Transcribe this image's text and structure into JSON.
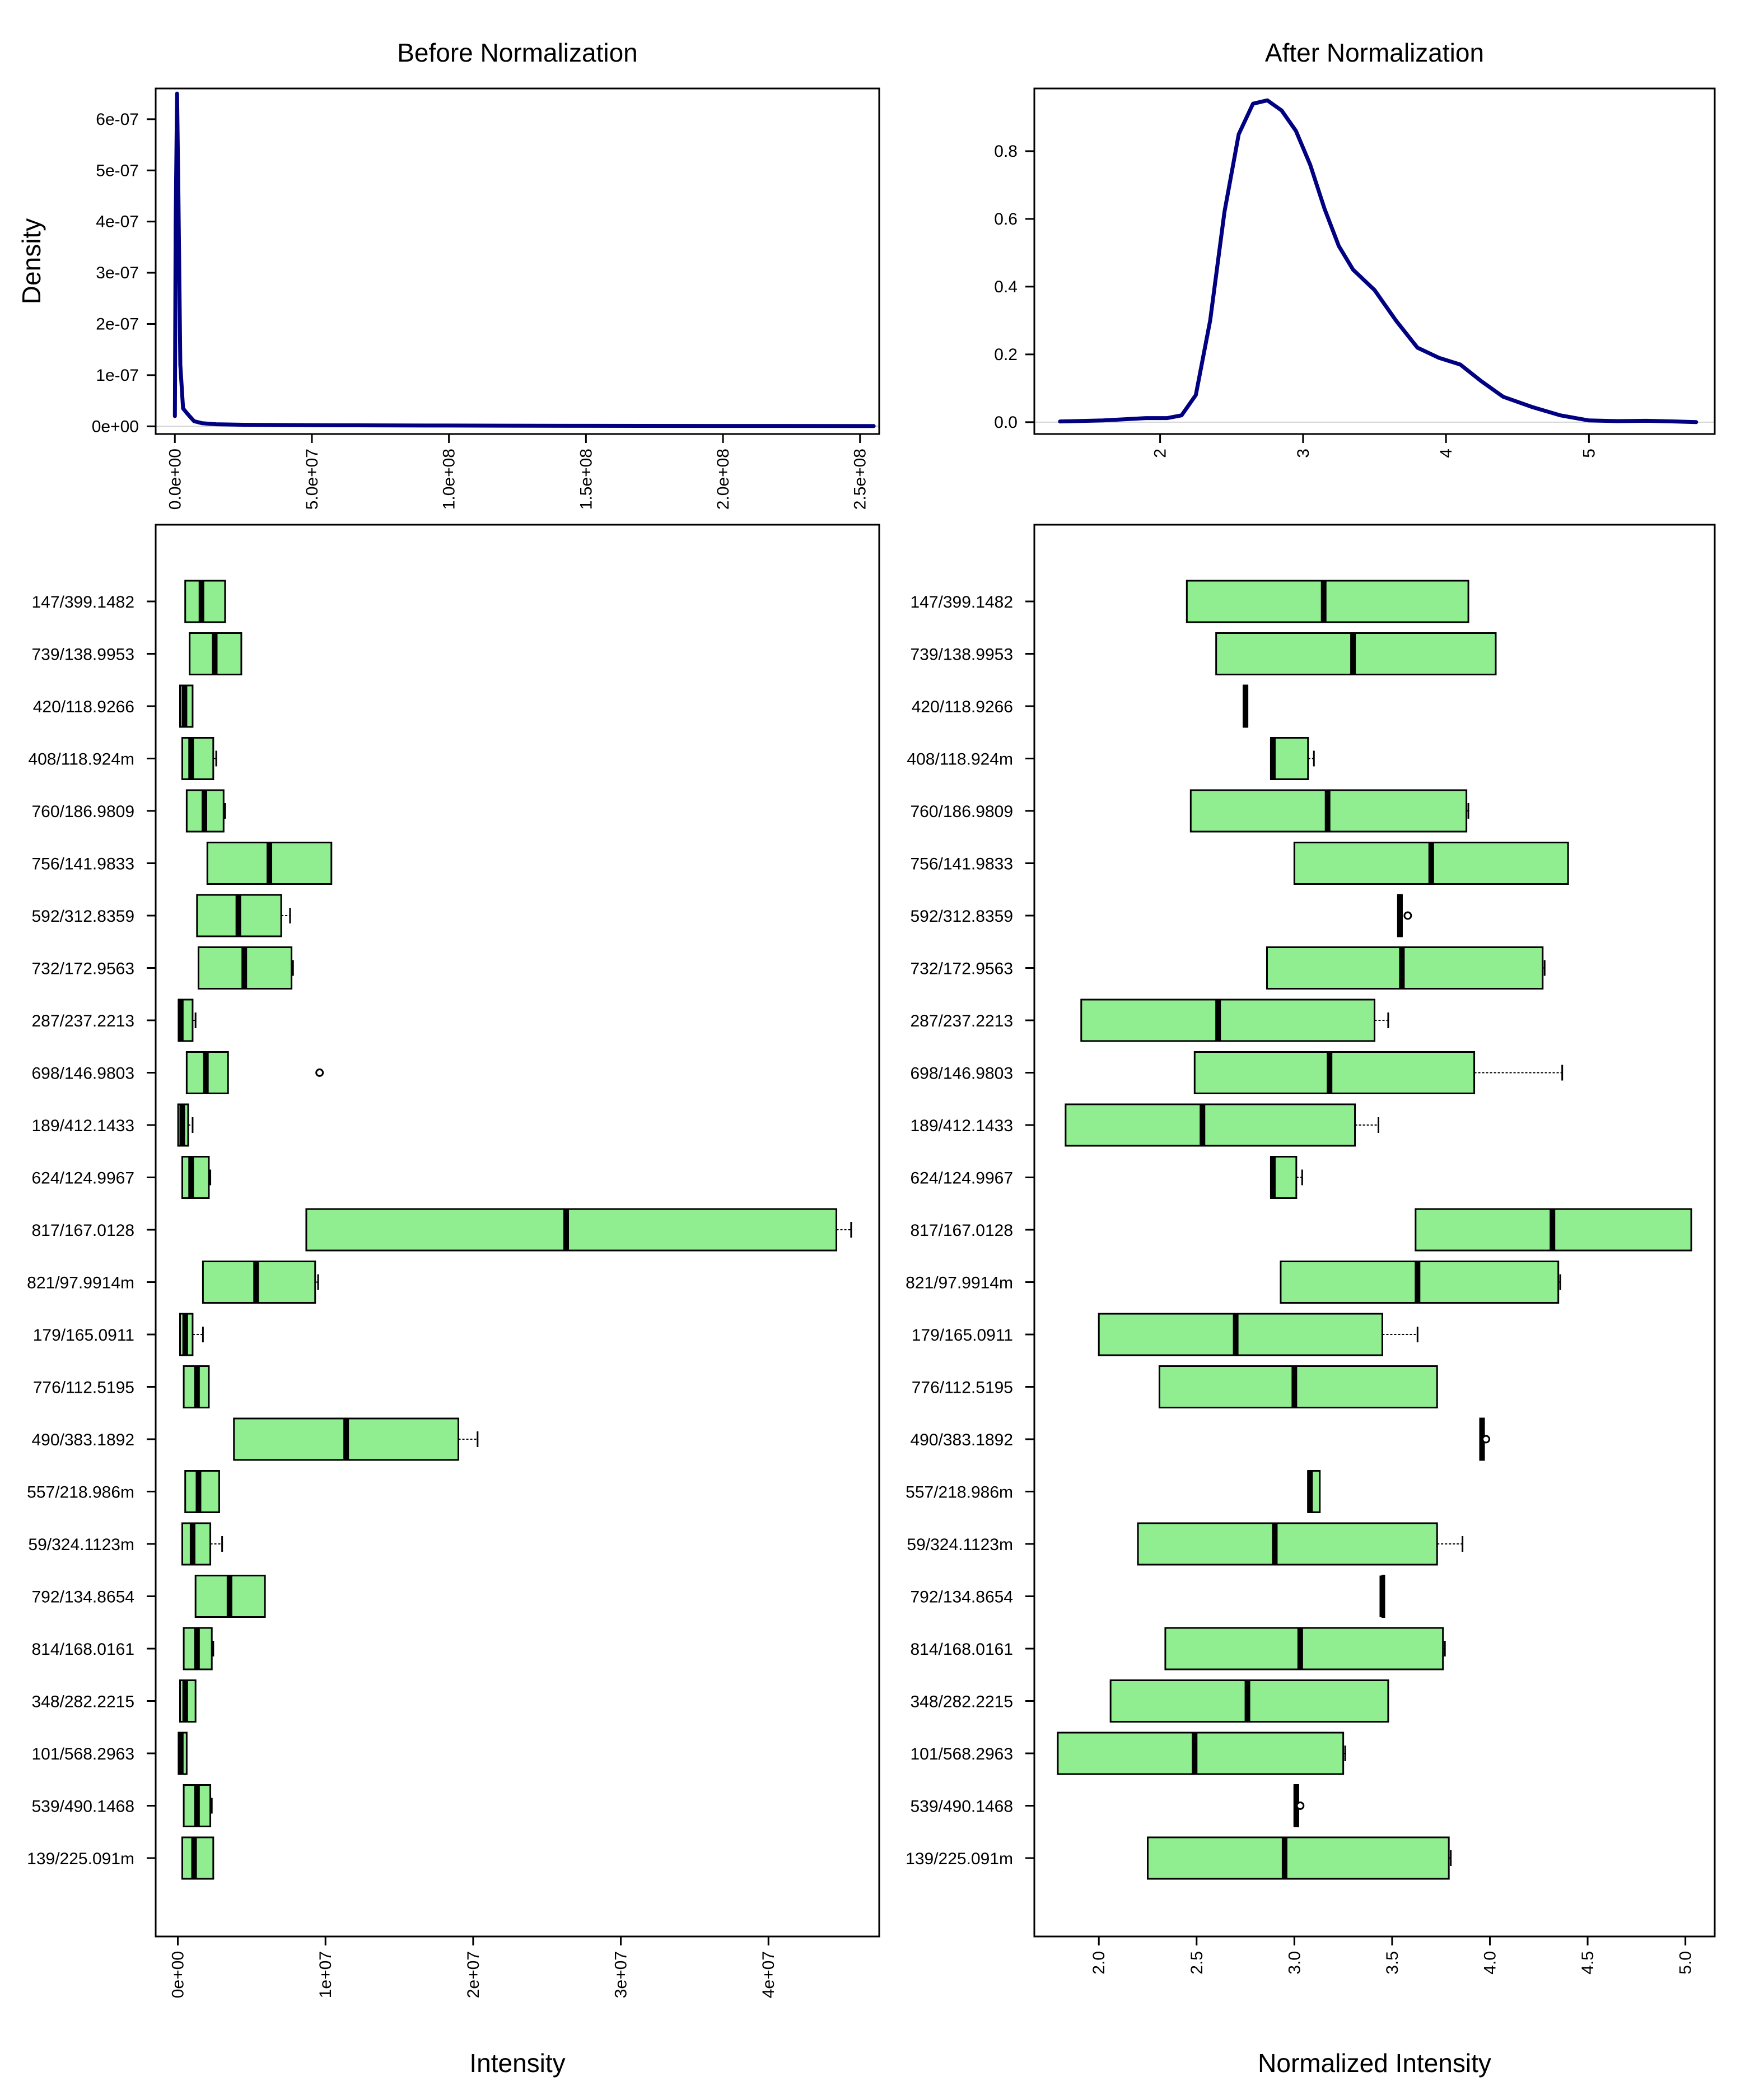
{
  "chart_data": [
    {
      "type": "line",
      "title": "Before Normalization",
      "ylabel": "Density",
      "xlabel": "",
      "xlim": [
        -7000000.0,
        257000000.0
      ],
      "ylim": [
        -1.5e-08,
        6.6e-07
      ],
      "xticks": [
        0,
        50000000.0,
        100000000.0,
        150000000.0,
        200000000.0,
        250000000.0
      ],
      "xtick_labels": [
        "0.0e+00",
        "5.0e+07",
        "1.0e+08",
        "1.5e+08",
        "2.0e+08",
        "2.5e+08"
      ],
      "yticks": [
        0,
        1e-07,
        2e-07,
        3e-07,
        4e-07,
        5e-07,
        6e-07
      ],
      "ytick_labels": [
        "0e+00",
        "1e-07",
        "2e-07",
        "3e-07",
        "4e-07",
        "5e-07",
        "6e-07"
      ],
      "color": "#000080",
      "series": [
        {
          "x": [
            0,
            300000.0,
            800000.0,
            1300000.0,
            2000000.0,
            3000000.0,
            4500000.0,
            7000000.0,
            10000000.0,
            15000000.0,
            25000000.0,
            40000000.0,
            60000000.0,
            100000000.0,
            150000000.0,
            200000000.0,
            255000000.0
          ],
          "y": [
            2e-08,
            4e-07,
            6.5e-07,
            4.5e-07,
            1.2e-07,
            3.5e-08,
            2.5e-08,
            1e-08,
            6e-09,
            4e-09,
            3e-09,
            2.5e-09,
            2e-09,
            1.5e-09,
            1e-09,
            8e-10,
            5e-10
          ]
        }
      ]
    },
    {
      "type": "line",
      "title": "After Normalization",
      "ylabel": "",
      "xlabel": "",
      "xlim": [
        1.12,
        5.88
      ],
      "ylim": [
        -0.035,
        0.985
      ],
      "xticks": [
        2,
        3,
        4,
        5
      ],
      "xtick_labels": [
        "2",
        "3",
        "4",
        "5"
      ],
      "yticks": [
        0,
        0.2,
        0.4,
        0.6,
        0.8
      ],
      "ytick_labels": [
        "0.0",
        "0.2",
        "0.4",
        "0.6",
        "0.8"
      ],
      "color": "#000080",
      "series": [
        {
          "x": [
            1.3,
            1.6,
            1.9,
            2.05,
            2.15,
            2.25,
            2.35,
            2.45,
            2.55,
            2.65,
            2.75,
            2.85,
            2.95,
            3.05,
            3.15,
            3.25,
            3.35,
            3.5,
            3.65,
            3.8,
            3.95,
            4.1,
            4.25,
            4.4,
            4.6,
            4.8,
            5.0,
            5.2,
            5.4,
            5.6,
            5.75
          ],
          "y": [
            0.002,
            0.005,
            0.012,
            0.012,
            0.02,
            0.08,
            0.3,
            0.62,
            0.85,
            0.94,
            0.95,
            0.92,
            0.86,
            0.76,
            0.63,
            0.52,
            0.45,
            0.39,
            0.3,
            0.22,
            0.19,
            0.17,
            0.12,
            0.075,
            0.045,
            0.02,
            0.005,
            0.003,
            0.004,
            0.002,
            0.0
          ]
        }
      ]
    },
    {
      "type": "box",
      "title": "",
      "xlabel": "Intensity",
      "orientation": "horizontal",
      "xlim": [
        -1500000.0,
        47500000.0
      ],
      "xticks": [
        0,
        10000000.0,
        20000000.0,
        30000000.0,
        40000000.0
      ],
      "xtick_labels": [
        "0e+00",
        "1e+07",
        "2e+07",
        "3e+07",
        "4e+07"
      ],
      "fill": "#90ee90",
      "categories": [
        "147/399.1482",
        "739/138.9953",
        "420/118.9266",
        "408/118.924m",
        "760/186.9809",
        "756/141.9833",
        "592/312.8359",
        "732/172.9563",
        "287/237.2213",
        "698/146.9803",
        "189/412.1433",
        "624/124.9967",
        "817/167.0128",
        "821/97.9914m",
        "179/165.0911",
        "776/112.5195",
        "490/383.1892",
        "557/218.986m",
        "59/324.1123m",
        "792/134.8654",
        "814/168.0161",
        "348/282.2215",
        "101/568.2963",
        "539/490.1468",
        "139/225.091m"
      ],
      "boxes": [
        {
          "whislo": 500000,
          "q1": 500000,
          "med": 1600000,
          "q3": 3200000,
          "whishi": 3200000,
          "fliers": []
        },
        {
          "whislo": 800000,
          "q1": 800000,
          "med": 2500000,
          "q3": 4300000,
          "whishi": 4300000,
          "fliers": []
        },
        {
          "whislo": 150000,
          "q1": 150000,
          "med": 450000,
          "q3": 1000000,
          "whishi": 1000000,
          "fliers": []
        },
        {
          "whislo": 300000,
          "q1": 300000,
          "med": 900000,
          "q3": 2400000,
          "whishi": 2600000,
          "fliers": []
        },
        {
          "whislo": 600000,
          "q1": 600000,
          "med": 1800000,
          "q3": 3100000,
          "whishi": 3200000,
          "fliers": []
        },
        {
          "whislo": 2000000,
          "q1": 2000000,
          "med": 6200000,
          "q3": 10400000,
          "whishi": 10400000,
          "fliers": []
        },
        {
          "whislo": 1300000,
          "q1": 1300000,
          "med": 4100000,
          "q3": 7000000,
          "whishi": 7600000,
          "fliers": []
        },
        {
          "whislo": 1400000,
          "q1": 1400000,
          "med": 4500000,
          "q3": 7700000,
          "whishi": 7800000,
          "fliers": []
        },
        {
          "whislo": 50000,
          "q1": 50000,
          "med": 200000,
          "q3": 1000000,
          "whishi": 1200000,
          "fliers": []
        },
        {
          "whislo": 600000,
          "q1": 600000,
          "med": 1900000,
          "q3": 3400000,
          "whishi": 3400000,
          "fliers": [
            9600000
          ]
        },
        {
          "whislo": 20000,
          "q1": 20000,
          "med": 300000,
          "q3": 700000,
          "whishi": 1000000,
          "fliers": []
        },
        {
          "whislo": 300000,
          "q1": 300000,
          "med": 900000,
          "q3": 2100000,
          "whishi": 2200000,
          "fliers": []
        },
        {
          "whislo": 8700000,
          "q1": 8700000,
          "med": 26300000,
          "q3": 44600000,
          "whishi": 45600000,
          "fliers": []
        },
        {
          "whislo": 1700000,
          "q1": 1700000,
          "med": 5300000,
          "q3": 9300000,
          "whishi": 9500000,
          "fliers": []
        },
        {
          "whislo": 150000,
          "q1": 150000,
          "med": 500000,
          "q3": 1000000,
          "whishi": 1700000,
          "fliers": []
        },
        {
          "whislo": 400000,
          "q1": 400000,
          "med": 1300000,
          "q3": 2100000,
          "whishi": 2100000,
          "fliers": []
        },
        {
          "whislo": 3800000,
          "q1": 3800000,
          "med": 11400000,
          "q3": 19000000,
          "whishi": 20300000,
          "fliers": []
        },
        {
          "whislo": 500000,
          "q1": 500000,
          "med": 1400000,
          "q3": 2800000,
          "whishi": 2800000,
          "fliers": []
        },
        {
          "whislo": 300000,
          "q1": 300000,
          "med": 1000000,
          "q3": 2200000,
          "whishi": 3000000,
          "fliers": []
        },
        {
          "whislo": 1200000,
          "q1": 1200000,
          "med": 3500000,
          "q3": 5900000,
          "whishi": 5900000,
          "fliers": []
        },
        {
          "whislo": 400000,
          "q1": 400000,
          "med": 1300000,
          "q3": 2300000,
          "whishi": 2400000,
          "fliers": []
        },
        {
          "whislo": 150000,
          "q1": 150000,
          "med": 500000,
          "q3": 1200000,
          "whishi": 1200000,
          "fliers": []
        },
        {
          "whislo": 50000,
          "q1": 50000,
          "med": 200000,
          "q3": 600000,
          "whishi": 600000,
          "fliers": []
        },
        {
          "whislo": 400000,
          "q1": 400000,
          "med": 1300000,
          "q3": 2200000,
          "whishi": 2300000,
          "fliers": []
        },
        {
          "whislo": 300000,
          "q1": 300000,
          "med": 1100000,
          "q3": 2400000,
          "whishi": 2400000,
          "fliers": []
        }
      ]
    },
    {
      "type": "box",
      "title": "",
      "xlabel": "Normalized Intensity",
      "orientation": "horizontal",
      "xlim": [
        1.67,
        5.15
      ],
      "xticks": [
        2.0,
        2.5,
        3.0,
        3.5,
        4.0,
        4.5,
        5.0
      ],
      "xtick_labels": [
        "2.0",
        "2.5",
        "3.0",
        "3.5",
        "4.0",
        "4.5",
        "5.0"
      ],
      "fill": "#90ee90",
      "categories": [
        "147/399.1482",
        "739/138.9953",
        "420/118.9266",
        "408/118.924m",
        "760/186.9809",
        "756/141.9833",
        "592/312.8359",
        "732/172.9563",
        "287/237.2213",
        "698/146.9803",
        "189/412.1433",
        "624/124.9967",
        "817/167.0128",
        "821/97.9914m",
        "179/165.0911",
        "776/112.5195",
        "490/383.1892",
        "557/218.986m",
        "59/324.1123m",
        "792/134.8654",
        "814/168.0161",
        "348/282.2215",
        "101/568.2963",
        "539/490.1468",
        "139/225.091m"
      ],
      "boxes": [
        {
          "whislo": 2.45,
          "q1": 2.45,
          "med": 3.15,
          "q3": 3.89,
          "whishi": 3.89,
          "fliers": []
        },
        {
          "whislo": 2.6,
          "q1": 2.6,
          "med": 3.3,
          "q3": 4.03,
          "whishi": 4.03,
          "fliers": []
        },
        {
          "whislo": 2.74,
          "q1": 2.74,
          "med": 2.75,
          "q3": 2.76,
          "whishi": 2.76,
          "fliers": []
        },
        {
          "whislo": 2.88,
          "q1": 2.88,
          "med": 2.89,
          "q3": 3.07,
          "whishi": 3.1,
          "fliers": []
        },
        {
          "whislo": 2.47,
          "q1": 2.47,
          "med": 3.17,
          "q3": 3.88,
          "whishi": 3.89,
          "fliers": []
        },
        {
          "whislo": 3.0,
          "q1": 3.0,
          "med": 3.7,
          "q3": 4.4,
          "whishi": 4.4,
          "fliers": []
        },
        {
          "whislo": 3.53,
          "q1": 3.53,
          "med": 3.54,
          "q3": 3.55,
          "whishi": 3.55,
          "fliers": [
            3.58
          ]
        },
        {
          "whislo": 2.86,
          "q1": 2.86,
          "med": 3.55,
          "q3": 4.27,
          "whishi": 4.28,
          "fliers": []
        },
        {
          "whislo": 1.91,
          "q1": 1.91,
          "med": 2.61,
          "q3": 3.41,
          "whishi": 3.48,
          "fliers": []
        },
        {
          "whislo": 2.49,
          "q1": 2.49,
          "med": 3.18,
          "q3": 3.92,
          "whishi": 4.37,
          "fliers": []
        },
        {
          "whislo": 1.83,
          "q1": 1.83,
          "med": 2.53,
          "q3": 3.31,
          "whishi": 3.43,
          "fliers": []
        },
        {
          "whislo": 2.88,
          "q1": 2.88,
          "med": 2.89,
          "q3": 3.01,
          "whishi": 3.04,
          "fliers": []
        },
        {
          "whislo": 3.62,
          "q1": 3.62,
          "med": 4.32,
          "q3": 5.03,
          "whishi": 5.03,
          "fliers": []
        },
        {
          "whislo": 2.93,
          "q1": 2.93,
          "med": 3.63,
          "q3": 4.35,
          "whishi": 4.36,
          "fliers": []
        },
        {
          "whislo": 2.0,
          "q1": 2.0,
          "med": 2.7,
          "q3": 3.45,
          "whishi": 3.63,
          "fliers": []
        },
        {
          "whislo": 2.31,
          "q1": 2.31,
          "med": 3.0,
          "q3": 3.73,
          "whishi": 3.73,
          "fliers": []
        },
        {
          "whislo": 3.95,
          "q1": 3.95,
          "med": 3.96,
          "q3": 3.97,
          "whishi": 3.97,
          "fliers": [
            3.98
          ]
        },
        {
          "whislo": 3.07,
          "q1": 3.07,
          "med": 3.08,
          "q3": 3.13,
          "whishi": 3.13,
          "fliers": []
        },
        {
          "whislo": 2.2,
          "q1": 2.2,
          "med": 2.9,
          "q3": 3.73,
          "whishi": 3.86,
          "fliers": []
        },
        {
          "whislo": 3.45,
          "q1": 3.45,
          "med": 3.45,
          "q3": 3.46,
          "whishi": 3.46,
          "fliers": []
        },
        {
          "whislo": 2.34,
          "q1": 2.34,
          "med": 3.03,
          "q3": 3.76,
          "whishi": 3.77,
          "fliers": []
        },
        {
          "whislo": 2.06,
          "q1": 2.06,
          "med": 2.76,
          "q3": 3.48,
          "whishi": 3.48,
          "fliers": []
        },
        {
          "whislo": 1.79,
          "q1": 1.79,
          "med": 2.49,
          "q3": 3.25,
          "whishi": 3.26,
          "fliers": []
        },
        {
          "whislo": 3.0,
          "q1": 3.0,
          "med": 3.01,
          "q3": 3.02,
          "whishi": 3.02,
          "fliers": [
            3.03
          ]
        },
        {
          "whislo": 2.25,
          "q1": 2.25,
          "med": 2.95,
          "q3": 3.79,
          "whishi": 3.8,
          "fliers": []
        }
      ]
    }
  ]
}
